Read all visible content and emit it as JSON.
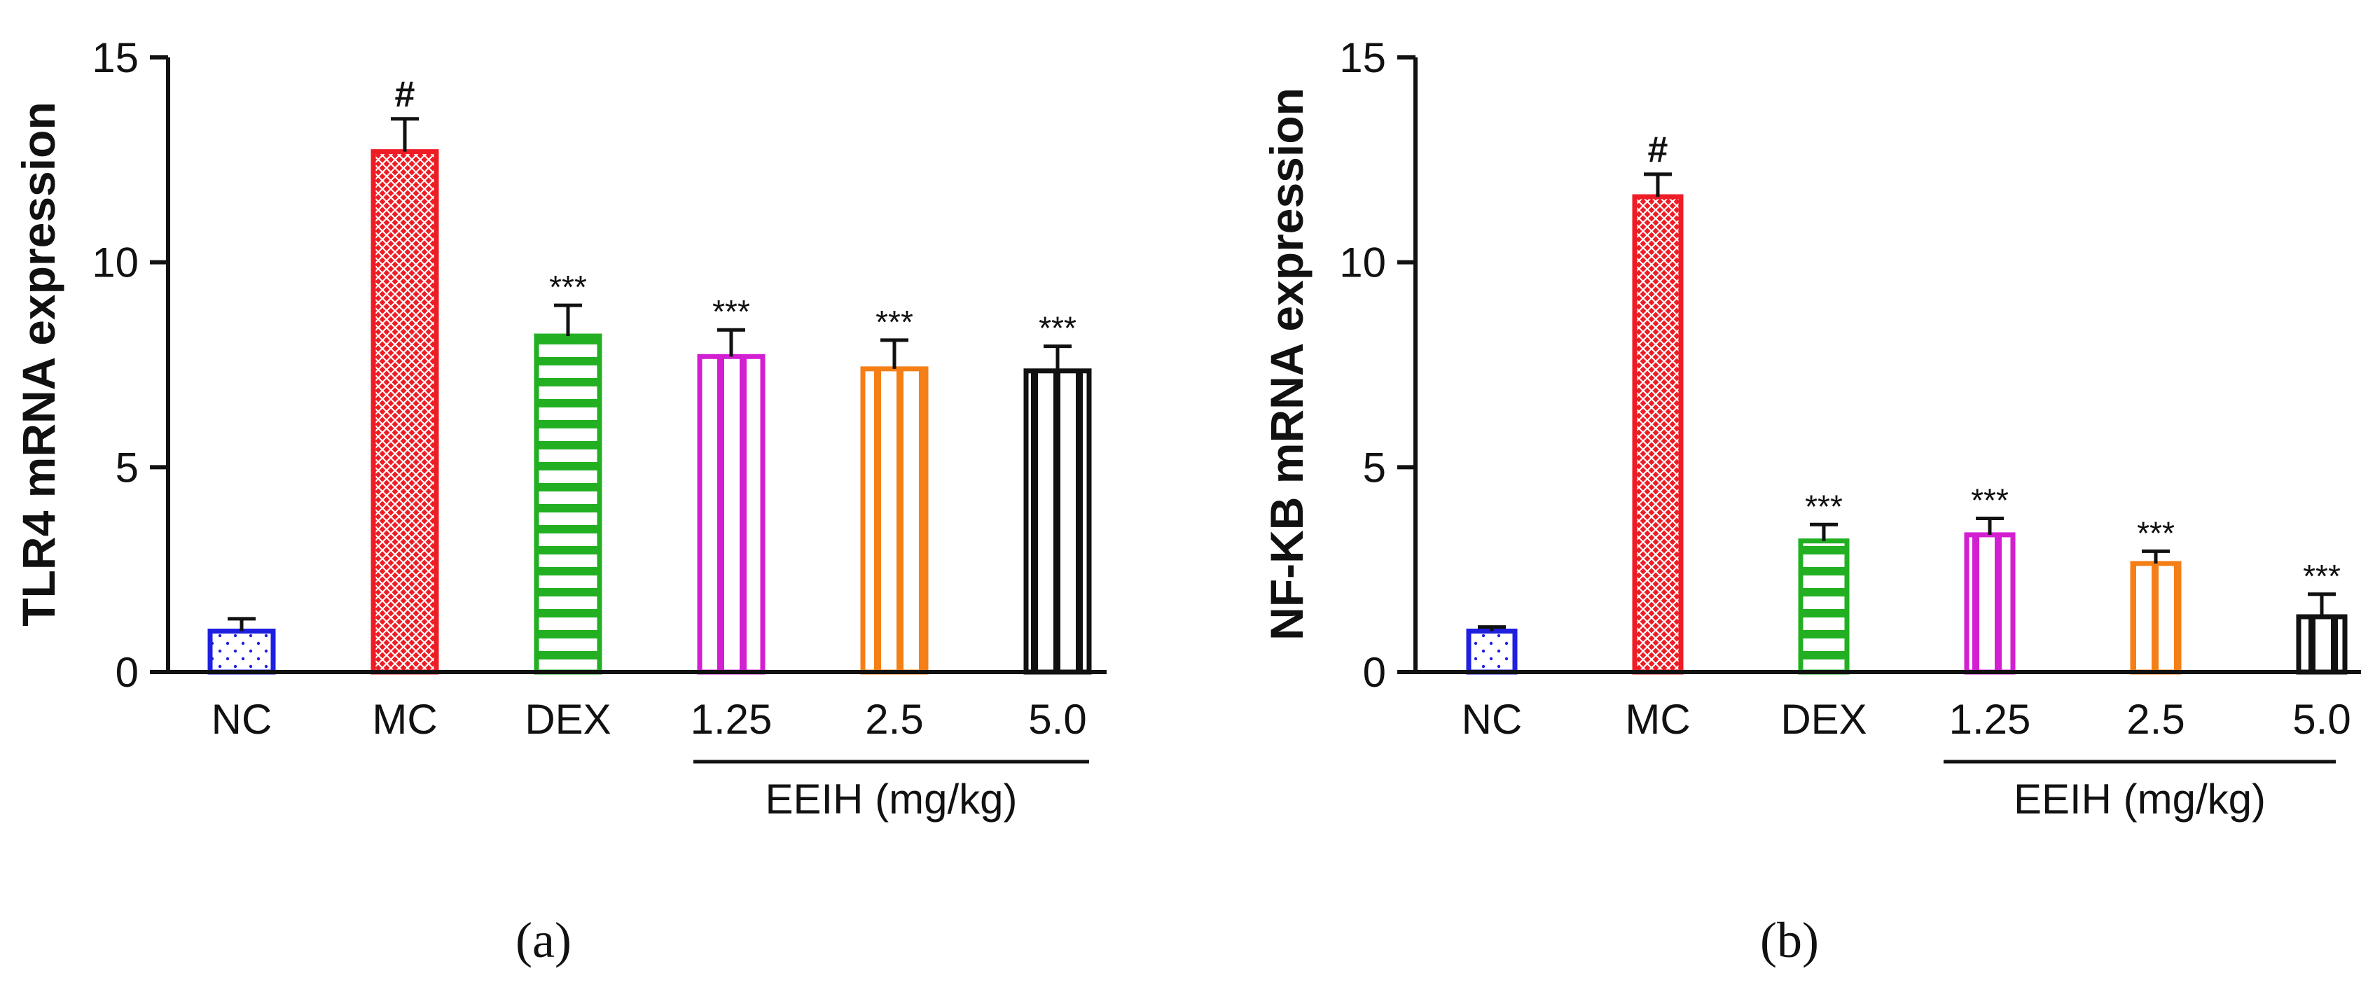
{
  "chart_data": [
    {
      "type": "bar",
      "panel_label": "(a)",
      "ylabel": "TLR4 mRNA expression",
      "ylim": [
        0,
        15
      ],
      "yticks": [
        0,
        5,
        10,
        15
      ],
      "categories": [
        "NC",
        "MC",
        "DEX",
        "1.25",
        "2.5",
        "5.0"
      ],
      "values": [
        1.0,
        12.7,
        8.2,
        7.7,
        7.4,
        7.35
      ],
      "errors": [
        0.3,
        0.8,
        0.75,
        0.65,
        0.7,
        0.6
      ],
      "annotations": [
        "",
        "#",
        "***",
        "***",
        "***",
        "***"
      ],
      "group_label": "EEIH (mg/kg)",
      "grid": false
    },
    {
      "type": "bar",
      "panel_label": "(b)",
      "ylabel": "NF-KB mRNA expression",
      "ylim": [
        0,
        15
      ],
      "yticks": [
        0,
        5,
        10,
        15
      ],
      "categories": [
        "NC",
        "MC",
        "DEX",
        "1.25",
        "2.5",
        "5.0"
      ],
      "values": [
        1.0,
        11.6,
        3.2,
        3.35,
        2.65,
        1.35
      ],
      "errors": [
        0.1,
        0.55,
        0.4,
        0.4,
        0.3,
        0.55
      ],
      "annotations": [
        "",
        "#",
        "***",
        "***",
        "***",
        "***"
      ],
      "group_label": "EEIH (mg/kg)",
      "grid": false
    }
  ],
  "bar_styles": [
    {
      "color": "#1f1fe0",
      "pattern": "dots"
    },
    {
      "color": "#ee1c24",
      "pattern": "crosshatch"
    },
    {
      "color": "#22b022",
      "pattern": "hstripes"
    },
    {
      "color": "#d21fd2",
      "pattern": "vstripes"
    },
    {
      "color": "#f57f17",
      "pattern": "vstripes"
    },
    {
      "color": "#111111",
      "pattern": "vstripes"
    }
  ]
}
